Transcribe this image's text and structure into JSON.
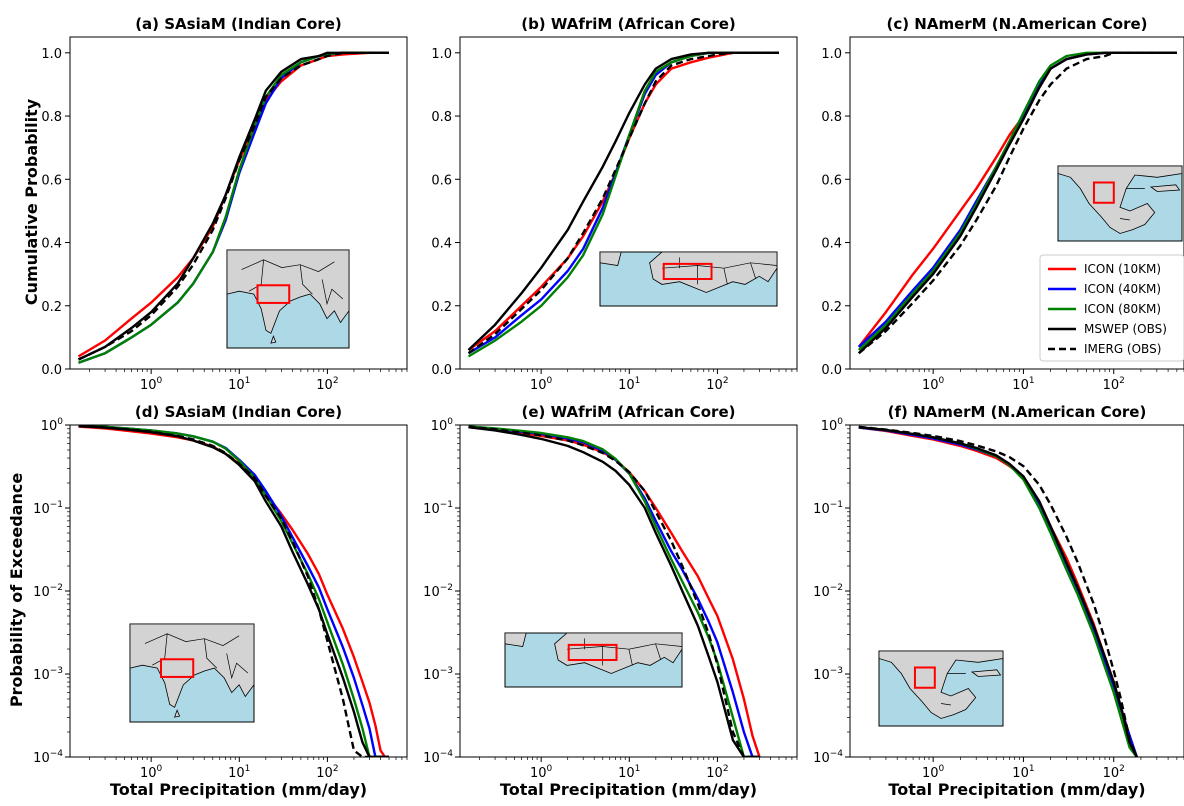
{
  "figure": {
    "ylabel_top": "Cumulative Probability",
    "ylabel_bottom": "Probability of Exceedance",
    "xlabel": "Total Precipitation (mm/day)"
  },
  "colors": {
    "icon10": "#ff0000",
    "icon40": "#0000ff",
    "icon80": "#008000",
    "mswep": "#000000",
    "imerg": "#000000",
    "ocean": "#add8e6",
    "land": "#d3d3d3",
    "box": "#ff0000"
  },
  "legend": [
    {
      "label": "ICON (10KM)",
      "color": "#ff0000",
      "dash": false
    },
    {
      "label": "ICON (40KM)",
      "color": "#0000ff",
      "dash": false
    },
    {
      "label": "ICON (80KM)",
      "color": "#008000",
      "dash": false
    },
    {
      "label": "MSWEP (OBS)",
      "color": "#000000",
      "dash": false
    },
    {
      "label": "IMERG (OBS)",
      "color": "#000000",
      "dash": true
    }
  ],
  "chart_data": [
    {
      "type": "line",
      "title": "(a) SAsiaM (Indian Core)",
      "scale": "cdf",
      "xscale": "log",
      "xlim": [
        0.12,
        800
      ],
      "ylim": [
        0,
        1.05
      ],
      "xticks": [
        "10^0",
        "10^1",
        "10^2"
      ],
      "yticks": [
        "0.0",
        "0.2",
        "0.4",
        "0.6",
        "0.8",
        "1.0"
      ],
      "inset_map": "India",
      "x": [
        0.15,
        0.3,
        0.6,
        1,
        2,
        3,
        5,
        7,
        10,
        15,
        20,
        30,
        50,
        80,
        100,
        150,
        300,
        500
      ],
      "series": [
        {
          "name": "ICON (10KM)",
          "values": [
            0.04,
            0.09,
            0.16,
            0.21,
            0.29,
            0.35,
            0.45,
            0.55,
            0.66,
            0.77,
            0.85,
            0.91,
            0.96,
            0.98,
            0.99,
            0.995,
            1.0,
            1.0
          ]
        },
        {
          "name": "ICON (40KM)",
          "values": [
            0.02,
            0.05,
            0.1,
            0.14,
            0.21,
            0.27,
            0.37,
            0.47,
            0.62,
            0.75,
            0.84,
            0.92,
            0.97,
            0.99,
            0.995,
            1.0,
            1.0,
            1.0
          ]
        },
        {
          "name": "ICON (80KM)",
          "values": [
            0.02,
            0.05,
            0.1,
            0.14,
            0.21,
            0.27,
            0.37,
            0.48,
            0.63,
            0.77,
            0.86,
            0.93,
            0.97,
            0.99,
            0.995,
            1.0,
            1.0,
            1.0
          ]
        },
        {
          "name": "MSWEP (OBS)",
          "values": [
            0.03,
            0.07,
            0.13,
            0.18,
            0.27,
            0.35,
            0.46,
            0.55,
            0.67,
            0.79,
            0.88,
            0.94,
            0.98,
            0.99,
            1.0,
            1.0,
            1.0,
            1.0
          ]
        },
        {
          "name": "IMERG (OBS)",
          "values": [
            0.03,
            0.07,
            0.12,
            0.17,
            0.26,
            0.33,
            0.44,
            0.54,
            0.66,
            0.77,
            0.86,
            0.92,
            0.96,
            0.98,
            0.99,
            1.0,
            1.0,
            1.0
          ]
        }
      ]
    },
    {
      "type": "line",
      "title": "(b) WAfriM (African Core)",
      "scale": "cdf",
      "xscale": "log",
      "xlim": [
        0.12,
        800
      ],
      "ylim": [
        0,
        1.05
      ],
      "xticks": [
        "10^0",
        "10^1",
        "10^2"
      ],
      "yticks": [
        "0.0",
        "0.2",
        "0.4",
        "0.6",
        "0.8",
        "1.0"
      ],
      "inset_map": "West Africa",
      "x": [
        0.15,
        0.3,
        0.6,
        1,
        2,
        3,
        5,
        7,
        10,
        15,
        20,
        30,
        50,
        80,
        100,
        150,
        300,
        500
      ],
      "series": [
        {
          "name": "ICON (10KM)",
          "values": [
            0.06,
            0.12,
            0.2,
            0.26,
            0.35,
            0.42,
            0.53,
            0.62,
            0.73,
            0.84,
            0.9,
            0.95,
            0.97,
            0.985,
            0.99,
            1.0,
            1.0,
            1.0
          ]
        },
        {
          "name": "ICON (40KM)",
          "values": [
            0.05,
            0.1,
            0.17,
            0.22,
            0.31,
            0.38,
            0.51,
            0.62,
            0.74,
            0.87,
            0.93,
            0.97,
            0.99,
            1.0,
            1.0,
            1.0,
            1.0,
            1.0
          ]
        },
        {
          "name": "ICON (80KM)",
          "values": [
            0.04,
            0.09,
            0.15,
            0.2,
            0.29,
            0.36,
            0.49,
            0.61,
            0.74,
            0.88,
            0.94,
            0.97,
            0.99,
            1.0,
            1.0,
            1.0,
            1.0,
            1.0
          ]
        },
        {
          "name": "MSWEP (OBS)",
          "values": [
            0.06,
            0.14,
            0.24,
            0.32,
            0.44,
            0.53,
            0.64,
            0.72,
            0.81,
            0.9,
            0.95,
            0.98,
            0.995,
            1.0,
            1.0,
            1.0,
            1.0,
            1.0
          ]
        },
        {
          "name": "IMERG (OBS)",
          "values": [
            0.05,
            0.11,
            0.19,
            0.25,
            0.35,
            0.43,
            0.54,
            0.63,
            0.73,
            0.84,
            0.91,
            0.96,
            0.98,
            0.99,
            0.995,
            1.0,
            1.0,
            1.0
          ]
        }
      ]
    },
    {
      "type": "line",
      "title": "(c) NAmerM (N.American Core)",
      "scale": "cdf",
      "xscale": "log",
      "xlim": [
        0.12,
        600
      ],
      "ylim": [
        0,
        1.05
      ],
      "xticks": [
        "10^0",
        "10^1",
        "10^2"
      ],
      "yticks": [
        "0.0",
        "0.2",
        "0.4",
        "0.6",
        "0.8",
        "1.0"
      ],
      "inset_map": "Mexico",
      "x": [
        0.15,
        0.3,
        0.6,
        1,
        2,
        3,
        5,
        7,
        10,
        15,
        20,
        30,
        50,
        80,
        100,
        150,
        300,
        500
      ],
      "series": [
        {
          "name": "ICON (10KM)",
          "values": [
            0.07,
            0.18,
            0.3,
            0.38,
            0.5,
            0.57,
            0.67,
            0.74,
            0.8,
            0.89,
            0.95,
            0.98,
            0.995,
            1.0,
            1.0,
            1.0,
            1.0,
            1.0
          ]
        },
        {
          "name": "ICON (40KM)",
          "values": [
            0.07,
            0.15,
            0.25,
            0.32,
            0.44,
            0.53,
            0.64,
            0.72,
            0.8,
            0.9,
            0.95,
            0.98,
            0.995,
            1.0,
            1.0,
            1.0,
            1.0,
            1.0
          ]
        },
        {
          "name": "ICON (80KM)",
          "values": [
            0.06,
            0.14,
            0.24,
            0.31,
            0.43,
            0.52,
            0.64,
            0.72,
            0.81,
            0.91,
            0.96,
            0.99,
            1.0,
            1.0,
            1.0,
            1.0,
            1.0,
            1.0
          ]
        },
        {
          "name": "MSWEP (OBS)",
          "values": [
            0.05,
            0.13,
            0.23,
            0.3,
            0.42,
            0.51,
            0.63,
            0.71,
            0.79,
            0.89,
            0.95,
            0.98,
            0.995,
            1.0,
            1.0,
            1.0,
            1.0,
            1.0
          ]
        },
        {
          "name": "IMERG (OBS)",
          "values": [
            0.05,
            0.12,
            0.21,
            0.28,
            0.39,
            0.47,
            0.58,
            0.67,
            0.76,
            0.85,
            0.9,
            0.95,
            0.98,
            0.99,
            1.0,
            1.0,
            1.0,
            1.0
          ]
        }
      ]
    },
    {
      "type": "line",
      "title": "(d) SAsiaM (Indian Core)",
      "scale": "exceedance",
      "xscale": "log",
      "yscale": "log",
      "xlim": [
        0.12,
        800
      ],
      "ylim": [
        0.0001,
        1
      ],
      "xticks": [
        "10^0",
        "10^1",
        "10^2"
      ],
      "yticks": [
        "10^-4",
        "10^-3",
        "10^-2",
        "10^-1",
        "10^0"
      ],
      "inset_map": "India",
      "x": [
        0.15,
        0.3,
        0.6,
        1,
        2,
        3,
        5,
        7,
        10,
        15,
        20,
        30,
        40,
        60,
        80,
        100,
        150,
        200,
        250,
        300,
        350,
        400,
        450,
        500
      ],
      "series": [
        {
          "name": "ICON (10KM)",
          "values": [
            0.96,
            0.91,
            0.84,
            0.79,
            0.71,
            0.65,
            0.55,
            0.45,
            0.34,
            0.23,
            0.15,
            0.085,
            0.055,
            0.028,
            0.016,
            0.009,
            0.0035,
            0.0016,
            0.0008,
            0.00045,
            0.00024,
            0.00012,
            0.0001,
            0.0001
          ]
        },
        {
          "name": "ICON (40KM)",
          "values": [
            0.98,
            0.95,
            0.9,
            0.86,
            0.79,
            0.73,
            0.63,
            0.53,
            0.38,
            0.25,
            0.16,
            0.08,
            0.045,
            0.02,
            0.011,
            0.006,
            0.0021,
            0.0009,
            0.00042,
            0.00022,
            0.0001,
            0.0001,
            0.0001,
            0.0001
          ]
        },
        {
          "name": "ICON (80KM)",
          "values": [
            0.98,
            0.95,
            0.9,
            0.86,
            0.79,
            0.73,
            0.63,
            0.52,
            0.37,
            0.23,
            0.14,
            0.07,
            0.038,
            0.016,
            0.008,
            0.0042,
            0.0013,
            0.0005,
            0.00022,
            0.0001,
            0.0001,
            0.0001,
            0.0001,
            0.0001
          ]
        },
        {
          "name": "MSWEP (OBS)",
          "values": [
            0.97,
            0.93,
            0.87,
            0.82,
            0.73,
            0.65,
            0.54,
            0.45,
            0.33,
            0.21,
            0.12,
            0.06,
            0.03,
            0.012,
            0.006,
            0.003,
            0.0009,
            0.00035,
            0.00015,
            0.0001,
            0.0001,
            0.0001,
            0.0001,
            0.0001
          ]
        },
        {
          "name": "IMERG (OBS)",
          "values": [
            0.97,
            0.93,
            0.88,
            0.83,
            0.74,
            0.67,
            0.56,
            0.46,
            0.34,
            0.23,
            0.14,
            0.075,
            0.04,
            0.015,
            0.006,
            0.0025,
            0.0005,
            0.00012,
            0.0001,
            0.0001,
            0.0001,
            0.0001,
            0.0001,
            0.0001
          ]
        }
      ]
    },
    {
      "type": "line",
      "title": "(e) WAfriM (African Core)",
      "scale": "exceedance",
      "xscale": "log",
      "yscale": "log",
      "xlim": [
        0.12,
        800
      ],
      "ylim": [
        0.0001,
        1
      ],
      "xticks": [
        "10^0",
        "10^1",
        "10^2"
      ],
      "yticks": [
        "10^-4",
        "10^-3",
        "10^-2",
        "10^-1",
        "10^0"
      ],
      "inset_map": "West Africa",
      "x": [
        0.15,
        0.3,
        0.6,
        1,
        2,
        3,
        5,
        7,
        10,
        15,
        20,
        30,
        40,
        60,
        80,
        100,
        150,
        200,
        250,
        300
      ],
      "series": [
        {
          "name": "ICON (10KM)",
          "values": [
            0.94,
            0.88,
            0.8,
            0.74,
            0.65,
            0.58,
            0.47,
            0.38,
            0.27,
            0.16,
            0.1,
            0.05,
            0.03,
            0.015,
            0.008,
            0.005,
            0.0015,
            0.0005,
            0.00018,
            0.0001
          ]
        },
        {
          "name": "ICON (40KM)",
          "values": [
            0.95,
            0.9,
            0.83,
            0.78,
            0.69,
            0.62,
            0.49,
            0.38,
            0.26,
            0.13,
            0.07,
            0.03,
            0.018,
            0.008,
            0.0042,
            0.0024,
            0.0006,
            0.0002,
            0.0001,
            0.0001
          ]
        },
        {
          "name": "ICON (80KM)",
          "values": [
            0.96,
            0.91,
            0.85,
            0.8,
            0.71,
            0.64,
            0.51,
            0.39,
            0.26,
            0.12,
            0.06,
            0.024,
            0.013,
            0.0055,
            0.0027,
            0.0014,
            0.0003,
            0.0001,
            0.0001,
            0.0001
          ]
        },
        {
          "name": "MSWEP (OBS)",
          "values": [
            0.94,
            0.86,
            0.76,
            0.68,
            0.56,
            0.47,
            0.36,
            0.28,
            0.19,
            0.1,
            0.05,
            0.02,
            0.01,
            0.0038,
            0.0016,
            0.0008,
            0.00016,
            0.0001,
            0.0001,
            0.0001
          ]
        },
        {
          "name": "IMERG (OBS)",
          "values": [
            0.95,
            0.89,
            0.81,
            0.75,
            0.65,
            0.57,
            0.46,
            0.37,
            0.27,
            0.16,
            0.09,
            0.04,
            0.02,
            0.007,
            0.003,
            0.0013,
            0.0002,
            0.0001,
            0.0001,
            0.0001
          ]
        }
      ]
    },
    {
      "type": "line",
      "title": "(f) NAmerM (N.American Core)",
      "scale": "exceedance",
      "xscale": "log",
      "yscale": "log",
      "xlim": [
        0.12,
        600
      ],
      "ylim": [
        0.0001,
        1
      ],
      "xticks": [
        "10^0",
        "10^1",
        "10^2"
      ],
      "yticks": [
        "10^-4",
        "10^-3",
        "10^-2",
        "10^-1",
        "10^0"
      ],
      "inset_map": "Mexico",
      "x": [
        0.15,
        0.3,
        0.6,
        1,
        2,
        3,
        5,
        7,
        10,
        15,
        20,
        30,
        40,
        60,
        80,
        100,
        120,
        150,
        180
      ],
      "series": [
        {
          "name": "ICON (10KM)",
          "values": [
            0.93,
            0.85,
            0.74,
            0.67,
            0.56,
            0.49,
            0.4,
            0.32,
            0.24,
            0.12,
            0.06,
            0.025,
            0.012,
            0.004,
            0.0016,
            0.0008,
            0.0004,
            0.00018,
            0.0001
          ]
        },
        {
          "name": "ICON (40KM)",
          "values": [
            0.93,
            0.86,
            0.76,
            0.69,
            0.58,
            0.51,
            0.42,
            0.33,
            0.23,
            0.11,
            0.055,
            0.02,
            0.01,
            0.0034,
            0.0014,
            0.0007,
            0.00038,
            0.00018,
            0.0001
          ]
        },
        {
          "name": "ICON (80KM)",
          "values": [
            0.94,
            0.87,
            0.78,
            0.71,
            0.6,
            0.52,
            0.42,
            0.33,
            0.22,
            0.1,
            0.05,
            0.018,
            0.009,
            0.003,
            0.0012,
            0.0006,
            0.0003,
            0.00013,
            0.0001
          ]
        },
        {
          "name": "MSWEP (OBS)",
          "values": [
            0.94,
            0.87,
            0.78,
            0.71,
            0.6,
            0.53,
            0.43,
            0.34,
            0.24,
            0.12,
            0.06,
            0.022,
            0.011,
            0.0038,
            0.0016,
            0.0008,
            0.0004,
            0.00015,
            0.0001
          ]
        },
        {
          "name": "IMERG (OBS)",
          "values": [
            0.95,
            0.88,
            0.8,
            0.74,
            0.64,
            0.57,
            0.48,
            0.41,
            0.32,
            0.19,
            0.11,
            0.045,
            0.022,
            0.007,
            0.0026,
            0.0011,
            0.0005,
            0.00016,
            0.0001
          ]
        }
      ]
    }
  ]
}
